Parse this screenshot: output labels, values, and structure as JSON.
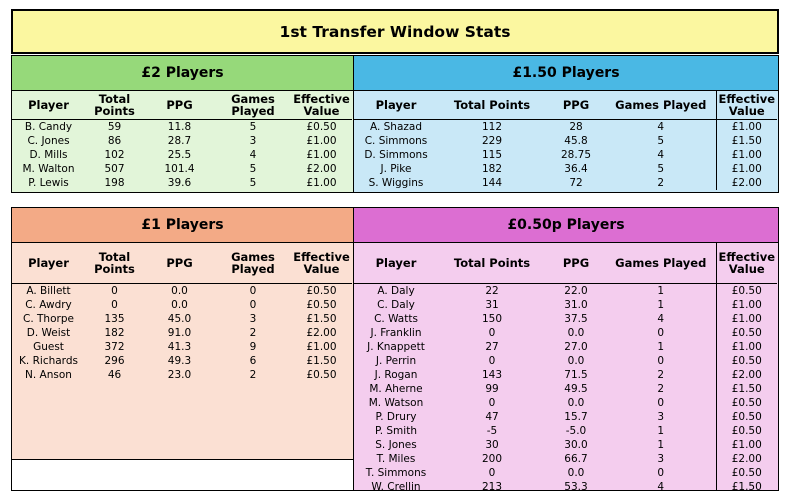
{
  "title": "1st Transfer Window Stats",
  "colors": {
    "title_bg": "#fbf7a0",
    "green_head": "#96d97a",
    "green_body": "#e2f5d9",
    "blue_head": "#4ab8e4",
    "blue_body": "#c9e8f7",
    "orange_head": "#f3aa86",
    "orange_body": "#fbe0d3",
    "purple_head": "#dc6ed2",
    "purple_body": "#f4cdee"
  },
  "panels": {
    "p2": {
      "title": "£2 Players",
      "headers": [
        "Player",
        "Total Points",
        "PPG",
        "Games Played",
        "Effective Value"
      ],
      "rows": [
        [
          "B. Candy",
          "59",
          "11.8",
          "5",
          "£0.50"
        ],
        [
          "C. Jones",
          "86",
          "28.7",
          "3",
          "£1.00"
        ],
        [
          "D. Mills",
          "102",
          "25.5",
          "4",
          "£1.00"
        ],
        [
          "M. Walton",
          "507",
          "101.4",
          "5",
          "£2.00"
        ],
        [
          "P. Lewis",
          "198",
          "39.6",
          "5",
          "£1.00"
        ]
      ]
    },
    "p150": {
      "title": "£1.50 Players",
      "headers": [
        "Player",
        "Total Points",
        "PPG",
        "Games Played",
        "Effective Value"
      ],
      "rows": [
        [
          "A. Shazad",
          "112",
          "28",
          "4",
          "£1.00"
        ],
        [
          "C. Simmons",
          "229",
          "45.8",
          "5",
          "£1.50"
        ],
        [
          "D. Simmons",
          "115",
          "28.75",
          "4",
          "£1.00"
        ],
        [
          "J. Pike",
          "182",
          "36.4",
          "5",
          "£1.00"
        ],
        [
          "S. Wiggins",
          "144",
          "72",
          "2",
          "£2.00"
        ]
      ]
    },
    "p1": {
      "title": "£1 Players",
      "headers": [
        "Player",
        "Total Points",
        "PPG",
        "Games Played",
        "Effective Value"
      ],
      "rows": [
        [
          "A. Billett",
          "0",
          "0.0",
          "0",
          "£0.50"
        ],
        [
          "C. Awdry",
          "0",
          "0.0",
          "0",
          "£0.50"
        ],
        [
          "C. Thorpe",
          "135",
          "45.0",
          "3",
          "£1.50"
        ],
        [
          "D. Weist",
          "182",
          "91.0",
          "2",
          "£2.00"
        ],
        [
          "Guest",
          "372",
          "41.3",
          "9",
          "£1.00"
        ],
        [
          "K. Richards",
          "296",
          "49.3",
          "6",
          "£1.50"
        ],
        [
          "N. Anson",
          "46",
          "23.0",
          "2",
          "£0.50"
        ]
      ]
    },
    "p050": {
      "title": "£0.50p Players",
      "headers": [
        "Player",
        "Total Points",
        "PPG",
        "Games Played",
        "Effective Value"
      ],
      "rows": [
        [
          "A. Daly",
          "22",
          "22.0",
          "1",
          "£0.50"
        ],
        [
          "C. Daly",
          "31",
          "31.0",
          "1",
          "£1.00"
        ],
        [
          "C. Watts",
          "150",
          "37.5",
          "4",
          "£1.00"
        ],
        [
          "J. Franklin",
          "0",
          "0.0",
          "0",
          "£0.50"
        ],
        [
          "J. Knappett",
          "27",
          "27.0",
          "1",
          "£1.00"
        ],
        [
          "J. Perrin",
          "0",
          "0.0",
          "0",
          "£0.50"
        ],
        [
          "J. Rogan",
          "143",
          "71.5",
          "2",
          "£2.00"
        ],
        [
          "M. Aherne",
          "99",
          "49.5",
          "2",
          "£1.50"
        ],
        [
          "M. Watson",
          "0",
          "0.0",
          "0",
          "£0.50"
        ],
        [
          "P. Drury",
          "47",
          "15.7",
          "3",
          "£0.50"
        ],
        [
          "P. Smith",
          "-5",
          "-5.0",
          "1",
          "£0.50"
        ],
        [
          "S. Jones",
          "30",
          "30.0",
          "1",
          "£1.00"
        ],
        [
          "T. Miles",
          "200",
          "66.7",
          "3",
          "£2.00"
        ],
        [
          "T. Simmons",
          "0",
          "0.0",
          "0",
          "£0.50"
        ],
        [
          "W. Crellin",
          "213",
          "53.3",
          "4",
          "£1.50"
        ]
      ]
    }
  }
}
